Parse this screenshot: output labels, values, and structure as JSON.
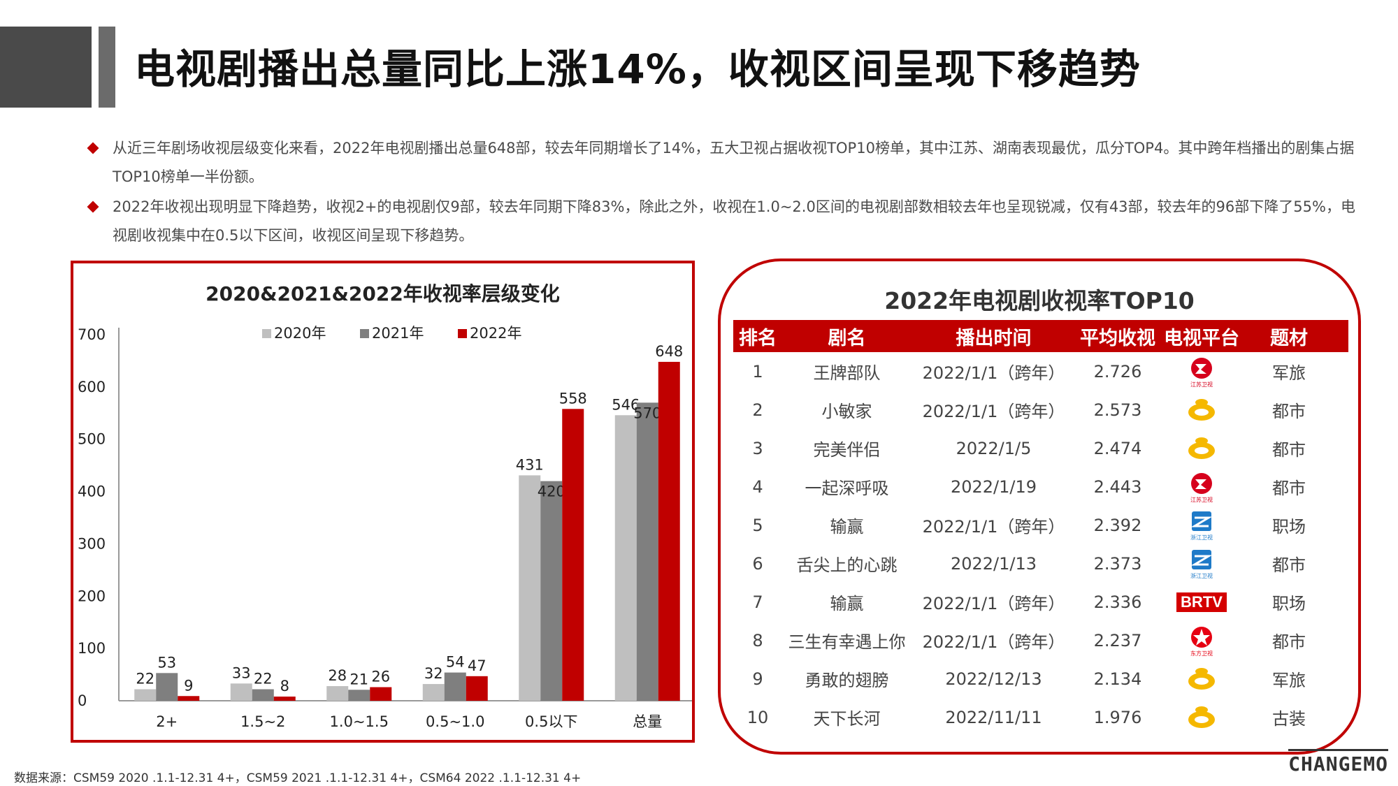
{
  "title": "电视剧播出总量同比上涨14%，收视区间呈现下移趋势",
  "bullets": [
    "从近三年剧场收视层级变化来看，2022年电视剧播出总量648部，较去年同期增长了14%，五大卫视占据收视TOP10榜单，其中江苏、湖南表现最优，瓜分TOP4。其中跨年档播出的剧集占据TOP10榜单一半份额。",
    "2022年收视出现明显下降趋势，收视2+的电视剧仅9部，较去年同期下降83%，除此之外，收视在1.0~2.0区间的电视剧部数相较去年也呈现锐减，仅有43部，较去年的96部下降了55%，电视剧收视集中在0.5以下区间，收视区间呈现下移趋势。"
  ],
  "colors": {
    "accent": "#c00000",
    "s2020": "#bfbfbf",
    "s2021": "#7f7f7f",
    "s2022": "#c00000"
  },
  "chart_data": {
    "type": "bar",
    "title": "2020&2021&2022年收视率层级变化",
    "categories": [
      "2+",
      "1.5~2",
      "1.0~1.5",
      "0.5~1.0",
      "0.5以下",
      "总量"
    ],
    "series": [
      {
        "name": "2020年",
        "values": [
          22,
          33,
          28,
          32,
          431,
          546
        ]
      },
      {
        "name": "2021年",
        "values": [
          53,
          22,
          21,
          54,
          420,
          570
        ]
      },
      {
        "name": "2022年",
        "values": [
          9,
          8,
          26,
          47,
          558,
          648
        ]
      }
    ],
    "yticks": [
      0,
      100,
      200,
      300,
      400,
      500,
      600,
      700
    ],
    "ylim": [
      0,
      700
    ],
    "legend": "top"
  },
  "table": {
    "title": "2022年电视剧收视率TOP10",
    "headers": [
      "排名",
      "剧名",
      "播出时间",
      "平均收视",
      "电视平台",
      "题材"
    ],
    "rows": [
      {
        "rank": "1",
        "name": "王牌部队",
        "date": "2022/1/1（跨年）",
        "rating": "2.726",
        "platform": "jiangsu-tv-logo",
        "genre": "军旅"
      },
      {
        "rank": "2",
        "name": "小敏家",
        "date": "2022/1/1（跨年）",
        "rating": "2.573",
        "platform": "hunan-tv-logo",
        "genre": "都市"
      },
      {
        "rank": "3",
        "name": "完美伴侣",
        "date": "2022/1/5",
        "rating": "2.474",
        "platform": "hunan-tv-logo",
        "genre": "都市"
      },
      {
        "rank": "4",
        "name": "一起深呼吸",
        "date": "2022/1/19",
        "rating": "2.443",
        "platform": "jiangsu-tv-logo",
        "genre": "都市"
      },
      {
        "rank": "5",
        "name": "输赢",
        "date": "2022/1/1（跨年）",
        "rating": "2.392",
        "platform": "zhejiang-tv-logo",
        "genre": "职场"
      },
      {
        "rank": "6",
        "name": "舌尖上的心跳",
        "date": "2022/1/13",
        "rating": "2.373",
        "platform": "zhejiang-tv-logo",
        "genre": "都市"
      },
      {
        "rank": "7",
        "name": "输赢",
        "date": "2022/1/1（跨年）",
        "rating": "2.336",
        "platform": "brtv-logo",
        "genre": "职场"
      },
      {
        "rank": "8",
        "name": "三生有幸遇上你",
        "date": "2022/1/1（跨年）",
        "rating": "2.237",
        "platform": "dragon-tv-logo",
        "genre": "都市"
      },
      {
        "rank": "9",
        "name": "勇敢的翅膀",
        "date": "2022/12/13",
        "rating": "2.134",
        "platform": "hunan-tv-logo",
        "genre": "军旅"
      },
      {
        "rank": "10",
        "name": "天下长河",
        "date": "2022/11/11",
        "rating": "1.976",
        "platform": "hunan-tv-logo",
        "genre": "古装"
      }
    ]
  },
  "logo_texts": {
    "jiangsu": "江苏卫视",
    "zhejiang": "浙江卫视",
    "dragon": "东方卫视",
    "brtv": "BRTV"
  },
  "source": "数据来源：CSM59  2020 .1.1-12.31 4+，CSM59  2021 .1.1-12.31 4+，CSM64  2022 .1.1-12.31 4+",
  "brand": "CHANGEMO"
}
